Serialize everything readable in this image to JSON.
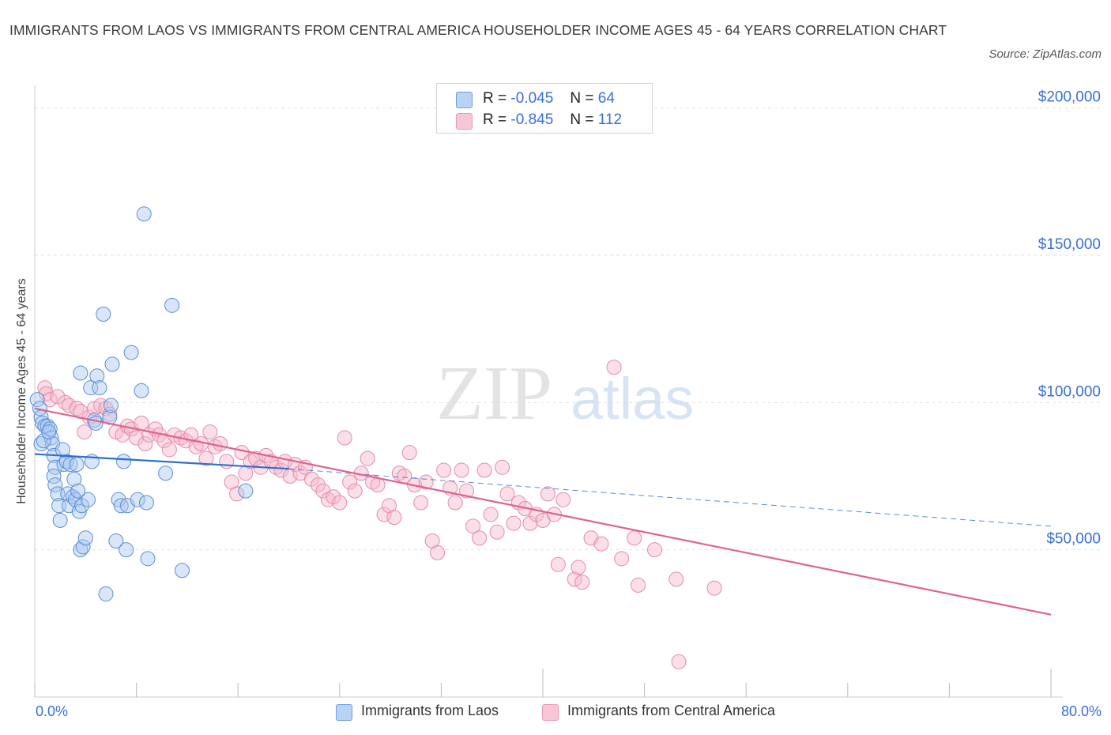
{
  "header": {
    "title": "IMMIGRANTS FROM LAOS VS IMMIGRANTS FROM CENTRAL AMERICA HOUSEHOLDER INCOME AGES 45 - 64 YEARS CORRELATION CHART",
    "source": "Source: ZipAtlas.com"
  },
  "watermark": {
    "zip": "ZIP",
    "atlas": "atlas"
  },
  "legend": {
    "items": [
      {
        "r_label": "R =",
        "r_value": "-0.045",
        "n_label": "N =",
        "n_value": "64"
      },
      {
        "r_label": "R =",
        "r_value": "-0.845",
        "n_label": "N =",
        "n_value": "112"
      }
    ]
  },
  "chart_data": {
    "type": "scatter",
    "title": "IMMIGRANTS FROM LAOS VS IMMIGRANTS FROM CENTRAL AMERICA HOUSEHOLDER INCOME AGES 45 - 64 YEARS CORRELATION CHART",
    "xlabel": "",
    "ylabel": "Householder Income Ages 45 - 64 years",
    "xlim": [
      0,
      80
    ],
    "ylim": [
      0,
      205000
    ],
    "x_tick_labels": [
      "0.0%",
      "80.0%"
    ],
    "y_ticks": [
      {
        "value": 50000,
        "label": "$50,000"
      },
      {
        "value": 100000,
        "label": "$100,000"
      },
      {
        "value": 150000,
        "label": "$150,000"
      },
      {
        "value": 200000,
        "label": "$200,000"
      }
    ],
    "grid": true,
    "legend_position": "top-center",
    "colors": {
      "laos_fill": "#a8c8f0",
      "laos_stroke": "#5b8fd6",
      "laos_line": "#2e6fd0",
      "ca_fill": "#f6b8cc",
      "ca_stroke": "#e58aa8",
      "ca_line": "#e0628e",
      "tick_text": "#3a6fd8"
    },
    "series": [
      {
        "name": "Immigrants from Laos",
        "trend": {
          "x0": 0,
          "y0": 82500,
          "x1": 20,
          "y1": 77500,
          "dashed_to_x": 80,
          "dashed_to_y": 58000
        },
        "points": [
          [
            0.2,
            101000
          ],
          [
            0.4,
            98000
          ],
          [
            0.5,
            95000
          ],
          [
            0.6,
            93000
          ],
          [
            0.5,
            86000
          ],
          [
            0.8,
            92000
          ],
          [
            1.0,
            92000
          ],
          [
            1.2,
            91000
          ],
          [
            1.3,
            88000
          ],
          [
            1.4,
            86000
          ],
          [
            1.5,
            82000
          ],
          [
            1.6,
            78000
          ],
          [
            1.5,
            75000
          ],
          [
            1.6,
            72000
          ],
          [
            1.8,
            69000
          ],
          [
            1.9,
            65000
          ],
          [
            2.0,
            60000
          ],
          [
            2.3,
            79000
          ],
          [
            2.5,
            80000
          ],
          [
            2.6,
            69000
          ],
          [
            2.7,
            65000
          ],
          [
            2.8,
            79000
          ],
          [
            3.0,
            68000
          ],
          [
            3.1,
            74000
          ],
          [
            3.2,
            67000
          ],
          [
            3.3,
            79000
          ],
          [
            3.5,
            63000
          ],
          [
            3.6,
            50000
          ],
          [
            3.6,
            110000
          ],
          [
            3.7,
            65000
          ],
          [
            3.8,
            51000
          ],
          [
            4.0,
            54000
          ],
          [
            4.2,
            67000
          ],
          [
            4.4,
            105000
          ],
          [
            4.7,
            94000
          ],
          [
            4.8,
            93000
          ],
          [
            4.9,
            109000
          ],
          [
            5.1,
            105000
          ],
          [
            5.4,
            130000
          ],
          [
            5.6,
            35000
          ],
          [
            5.9,
            95000
          ],
          [
            6.0,
            99000
          ],
          [
            6.1,
            113000
          ],
          [
            6.4,
            53000
          ],
          [
            6.6,
            67000
          ],
          [
            6.8,
            65000
          ],
          [
            7.0,
            80000
          ],
          [
            7.3,
            65000
          ],
          [
            7.2,
            50000
          ],
          [
            7.6,
            117000
          ],
          [
            8.1,
            67000
          ],
          [
            8.4,
            104000
          ],
          [
            8.8,
            66000
          ],
          [
            8.6,
            164000
          ],
          [
            8.9,
            47000
          ],
          [
            10.3,
            76000
          ],
          [
            10.8,
            133000
          ],
          [
            11.6,
            43000
          ],
          [
            16.6,
            70000
          ],
          [
            0.7,
            87000
          ],
          [
            1.1,
            90000
          ],
          [
            2.2,
            84000
          ],
          [
            3.4,
            70000
          ],
          [
            4.5,
            80000
          ]
        ]
      },
      {
        "name": "Immigrants from Central America",
        "trend": {
          "x0": 0,
          "y0": 98000,
          "x1": 80,
          "y1": 28000
        },
        "points": [
          [
            0.8,
            105000
          ],
          [
            0.9,
            103000
          ],
          [
            1.2,
            101000
          ],
          [
            1.8,
            102000
          ],
          [
            2.4,
            100000
          ],
          [
            2.7,
            99000
          ],
          [
            3.3,
            98000
          ],
          [
            3.6,
            97000
          ],
          [
            3.9,
            90000
          ],
          [
            4.3,
            95000
          ],
          [
            4.7,
            98000
          ],
          [
            5.2,
            99000
          ],
          [
            5.6,
            98000
          ],
          [
            5.9,
            96000
          ],
          [
            6.4,
            90000
          ],
          [
            6.9,
            89000
          ],
          [
            7.3,
            92000
          ],
          [
            7.6,
            91000
          ],
          [
            8.0,
            88000
          ],
          [
            8.4,
            93000
          ],
          [
            8.7,
            86000
          ],
          [
            9.0,
            89000
          ],
          [
            9.5,
            91000
          ],
          [
            9.8,
            89000
          ],
          [
            10.2,
            87000
          ],
          [
            10.6,
            84000
          ],
          [
            11.0,
            89000
          ],
          [
            11.5,
            88000
          ],
          [
            11.9,
            87000
          ],
          [
            12.3,
            89000
          ],
          [
            12.7,
            85000
          ],
          [
            13.1,
            86000
          ],
          [
            13.5,
            81000
          ],
          [
            13.8,
            90000
          ],
          [
            14.2,
            85000
          ],
          [
            14.6,
            86000
          ],
          [
            15.1,
            80000
          ],
          [
            15.5,
            73000
          ],
          [
            15.9,
            69000
          ],
          [
            16.3,
            83000
          ],
          [
            16.6,
            76000
          ],
          [
            17.0,
            80000
          ],
          [
            17.4,
            81000
          ],
          [
            17.8,
            78000
          ],
          [
            18.2,
            82000
          ],
          [
            18.6,
            80000
          ],
          [
            19.0,
            78000
          ],
          [
            19.4,
            77000
          ],
          [
            19.7,
            80000
          ],
          [
            20.1,
            75000
          ],
          [
            20.5,
            79000
          ],
          [
            20.9,
            76000
          ],
          [
            21.3,
            78000
          ],
          [
            21.8,
            74000
          ],
          [
            22.3,
            72000
          ],
          [
            22.7,
            70000
          ],
          [
            23.1,
            67000
          ],
          [
            23.5,
            68000
          ],
          [
            24.0,
            66000
          ],
          [
            24.4,
            88000
          ],
          [
            24.8,
            73000
          ],
          [
            25.2,
            70000
          ],
          [
            25.7,
            76000
          ],
          [
            26.2,
            81000
          ],
          [
            26.6,
            73000
          ],
          [
            27.0,
            72000
          ],
          [
            27.5,
            62000
          ],
          [
            27.9,
            65000
          ],
          [
            28.3,
            61000
          ],
          [
            28.7,
            76000
          ],
          [
            29.1,
            75000
          ],
          [
            29.5,
            83000
          ],
          [
            29.9,
            72000
          ],
          [
            30.4,
            66000
          ],
          [
            30.8,
            73000
          ],
          [
            31.3,
            53000
          ],
          [
            31.7,
            49000
          ],
          [
            32.2,
            77000
          ],
          [
            32.7,
            71000
          ],
          [
            33.1,
            66000
          ],
          [
            33.6,
            77000
          ],
          [
            34.0,
            70000
          ],
          [
            34.5,
            58000
          ],
          [
            35.0,
            54000
          ],
          [
            35.4,
            77000
          ],
          [
            35.9,
            62000
          ],
          [
            36.4,
            56000
          ],
          [
            36.8,
            78000
          ],
          [
            37.2,
            69000
          ],
          [
            37.7,
            59000
          ],
          [
            38.1,
            66000
          ],
          [
            38.6,
            64000
          ],
          [
            39.0,
            59000
          ],
          [
            39.5,
            62000
          ],
          [
            40.0,
            60000
          ],
          [
            40.4,
            69000
          ],
          [
            40.9,
            62000
          ],
          [
            41.2,
            45000
          ],
          [
            41.6,
            67000
          ],
          [
            42.5,
            40000
          ],
          [
            42.8,
            44000
          ],
          [
            43.1,
            39000
          ],
          [
            43.8,
            54000
          ],
          [
            44.6,
            52000
          ],
          [
            46.2,
            47000
          ],
          [
            47.5,
            38000
          ],
          [
            47.2,
            54000
          ],
          [
            48.8,
            50000
          ],
          [
            50.7,
            12000
          ],
          [
            50.5,
            40000
          ],
          [
            53.5,
            37000
          ],
          [
            45.6,
            112000
          ]
        ]
      }
    ]
  },
  "bottom_legend": {
    "laos_label": "Immigrants from Laos",
    "ca_label": "Immigrants from Central America"
  }
}
